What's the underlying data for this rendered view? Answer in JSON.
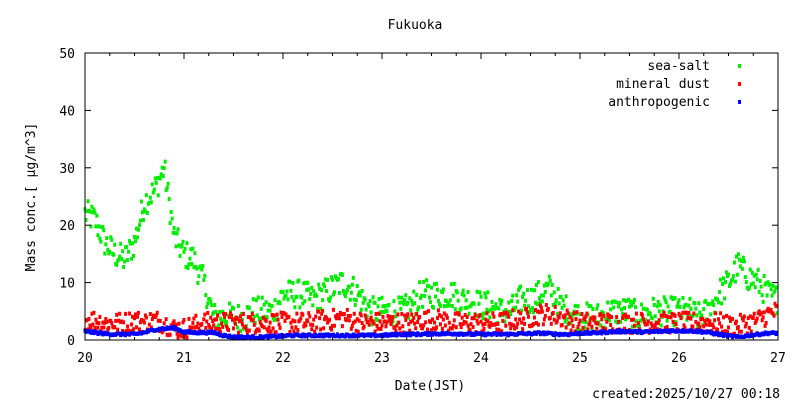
{
  "chart_data": {
    "type": "scatter",
    "title": "Fukuoka",
    "xlabel": "Date(JST)",
    "ylabel": "Mass conc.[ μg/m^3]",
    "footer": "created:2025/10/27 00:18",
    "xlim": [
      20,
      27
    ],
    "ylim": [
      0,
      50
    ],
    "xticks": [
      20,
      21,
      22,
      23,
      24,
      25,
      26,
      27
    ],
    "xtick_labels": [
      "20",
      "21",
      "22",
      "23",
      "24",
      "25",
      "26",
      "27"
    ],
    "yticks": [
      0,
      10,
      20,
      30,
      40,
      50
    ],
    "ytick_labels": [
      "0",
      "10",
      "20",
      "30",
      "40",
      "50"
    ],
    "legend_position": "top-right",
    "x_step": 0.1,
    "series": [
      {
        "name": "sea-salt",
        "color": "#00ee00",
        "spread": 2.5,
        "values": [
          22,
          21,
          17,
          15,
          14,
          17,
          24,
          26,
          30,
          18,
          15,
          14,
          10,
          4,
          4,
          4,
          4,
          5,
          5,
          5,
          8,
          8,
          8,
          7,
          8,
          9,
          10,
          9,
          7,
          5,
          5,
          5,
          5,
          6,
          8,
          8,
          8,
          8,
          7,
          7,
          6,
          6,
          5,
          5,
          7,
          7,
          8,
          9,
          6,
          5,
          4,
          4,
          4,
          5,
          5,
          5,
          4,
          5,
          5,
          5,
          5,
          5,
          4,
          5,
          8,
          10,
          13,
          11,
          10,
          8,
          7
        ]
      },
      {
        "name": "mineral dust",
        "color": "#ff0000",
        "spread": 1.8,
        "values": [
          3.5,
          3.5,
          3,
          3,
          3,
          3.5,
          3,
          3.5,
          3,
          2,
          2,
          2.5,
          3,
          3,
          3,
          3,
          3,
          3,
          3,
          3,
          3,
          3,
          3,
          3,
          3.5,
          3.5,
          4,
          3.5,
          3,
          3,
          3,
          3,
          3,
          3,
          3.5,
          3.5,
          3.5,
          3,
          3,
          3,
          3,
          3,
          3,
          3.5,
          3.5,
          4,
          4.5,
          4.5,
          4,
          3.5,
          3,
          3,
          3,
          3,
          3,
          3,
          3,
          3,
          3,
          3,
          3,
          3,
          3,
          3,
          3,
          2.5,
          2.5,
          3,
          3.5,
          4.5,
          5
        ]
      },
      {
        "name": "anthropogenic",
        "color": "#0000ff",
        "spread": 0.2,
        "values": [
          1.5,
          1.3,
          1.1,
          1,
          1,
          1,
          1.3,
          1.8,
          2,
          2.1,
          1.4,
          1.3,
          1.3,
          1.3,
          0.8,
          0.5,
          0.5,
          0.5,
          0.5,
          0.6,
          0.7,
          0.8,
          0.8,
          0.8,
          0.8,
          0.8,
          0.8,
          0.8,
          0.8,
          0.8,
          0.8,
          0.9,
          1,
          1,
          1,
          1.1,
          1.1,
          1.1,
          1.1,
          1,
          1,
          1,
          1,
          1,
          1.1,
          1.1,
          1.2,
          1.1,
          1,
          1,
          1.2,
          1.2,
          1.3,
          1.4,
          1.5,
          1.5,
          1.4,
          1.4,
          1.5,
          1.6,
          1.6,
          1.6,
          1.5,
          1.3,
          1,
          0.7,
          0.5,
          0.8,
          1,
          1.2,
          1.2
        ]
      }
    ]
  }
}
